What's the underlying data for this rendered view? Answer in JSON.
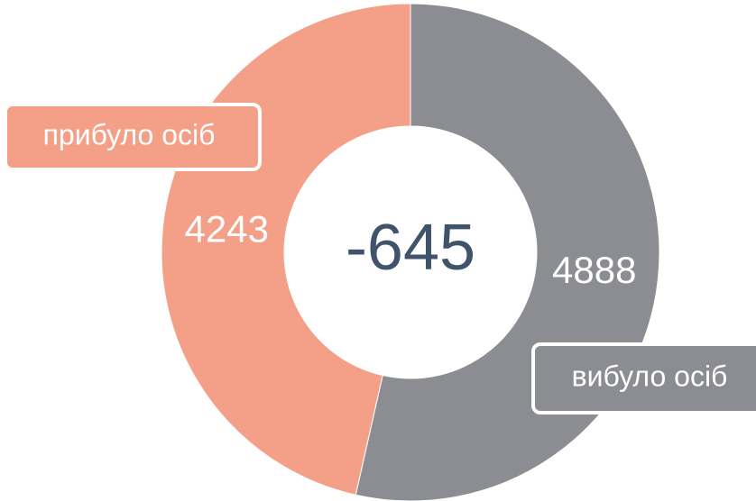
{
  "chart_data": {
    "type": "donut",
    "categories": [
      "вибуло осіб",
      "прибуло осіб"
    ],
    "values": [
      4888,
      4243
    ],
    "colors": [
      "#8b8d93",
      "#f4a088"
    ],
    "center_label": -645
  }
}
